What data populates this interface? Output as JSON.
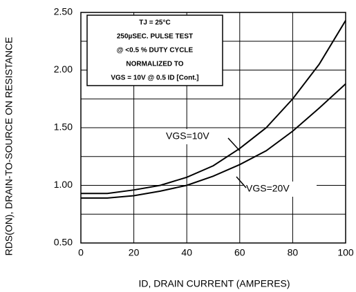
{
  "chart_data": {
    "type": "line",
    "xlabel": "ID, DRAIN CURRENT (AMPERES)",
    "ylabel": "RDS(ON), DRAIN-TO-SOURCE ON RESISTANCE",
    "annotation": [
      "TJ = 25°C",
      "250µSEC. PULSE TEST",
      "@ <0.5 % DUTY CYCLE",
      "NORMALIZED TO",
      "VGS = 10V  @  0.5  ID [Cont.]"
    ],
    "x": [
      0,
      10,
      20,
      30,
      40,
      50,
      60,
      70,
      80,
      90,
      100
    ],
    "series": [
      {
        "name": "VGS=10V",
        "color": "#000000",
        "values": [
          0.93,
          0.93,
          0.96,
          1.0,
          1.07,
          1.17,
          1.32,
          1.5,
          1.75,
          2.05,
          2.43
        ]
      },
      {
        "name": "VGS=20V",
        "color": "#000000",
        "values": [
          0.89,
          0.89,
          0.91,
          0.95,
          1.0,
          1.08,
          1.18,
          1.3,
          1.47,
          1.67,
          1.88
        ]
      }
    ],
    "xlim": [
      0,
      100
    ],
    "xticks": [
      0,
      20,
      40,
      60,
      80,
      100
    ],
    "ylim": [
      0.5,
      2.5
    ],
    "yticks": [
      {
        "value": 0.5,
        "label": "0.50"
      },
      {
        "value": 1.0,
        "label": "1.00"
      },
      {
        "value": 1.5,
        "label": "1.50"
      },
      {
        "value": 2.0,
        "label": "2.00"
      },
      {
        "value": 2.5,
        "label": "2.50"
      }
    ],
    "minor_yticks": [
      0.75,
      1.25,
      1.75,
      2.25
    ],
    "grid": true
  }
}
